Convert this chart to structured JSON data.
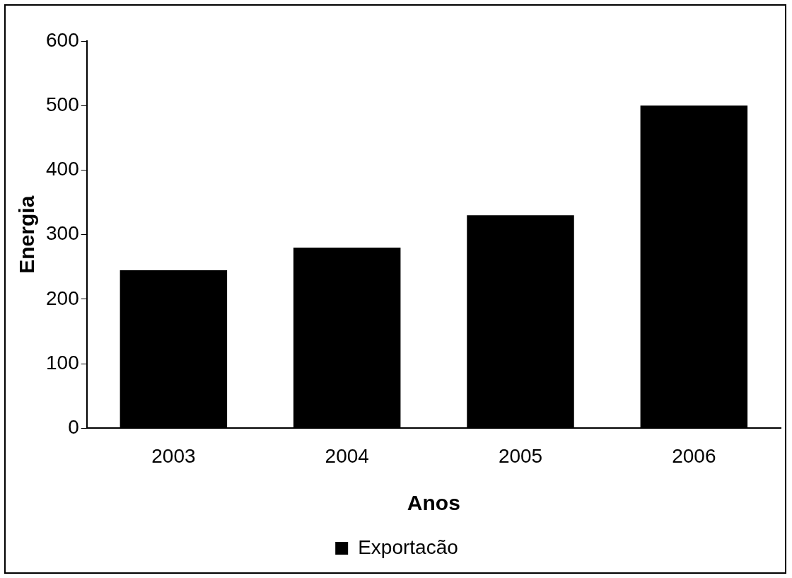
{
  "chart_data": {
    "type": "bar",
    "xlabel": "Anos",
    "ylabel": "Energia",
    "categories": [
      "2003",
      "2004",
      "2005",
      "2006"
    ],
    "series": [
      {
        "name": "Exportacão",
        "color": "#000000",
        "values": [
          245,
          280,
          330,
          500
        ]
      }
    ],
    "ylim": [
      0,
      600
    ],
    "yticks": [
      0,
      100,
      200,
      300,
      400,
      500,
      600
    ],
    "grid": false,
    "legend": "bottom"
  }
}
